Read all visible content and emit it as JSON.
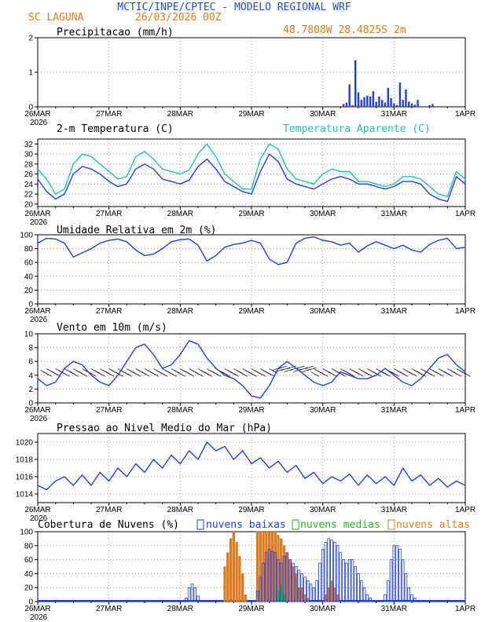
{
  "header": {
    "title": "MCTIC/INPE/CPTEC - MODELO REGIONAL WRF",
    "location": "SC LAGUNA",
    "date": "26/03/2026 00Z",
    "coords": "48.7808W 28.4825S 2m"
  },
  "colors": {
    "title": "#1f4bd9",
    "orange": "#e07b1a",
    "blue": "#1f3ee6",
    "cyan": "#1cc4b4",
    "green": "#22b522",
    "grid": "#9a9a9a"
  },
  "x_axis": {
    "labels": [
      "26MAR",
      "27MAR",
      "28MAR",
      "29MAR",
      "30MAR",
      "31MAR",
      "1APR"
    ],
    "year": "2026",
    "hours_total": 144
  },
  "chart_data": [
    {
      "type": "bar",
      "id": "precip",
      "title": "Precipitacao (mm/h)",
      "ylim": [
        0,
        2
      ],
      "yticks": [
        0,
        1,
        2
      ],
      "x_hours": [
        103,
        104,
        105,
        106,
        107,
        108,
        109,
        110,
        111,
        112,
        113,
        114,
        115,
        116,
        117,
        118,
        119,
        120,
        121,
        122,
        123,
        124,
        125,
        126,
        127,
        128,
        132,
        133
      ],
      "values": [
        0.08,
        0.12,
        0.65,
        0.05,
        1.35,
        0.42,
        0.2,
        0.28,
        0.32,
        0.3,
        0.45,
        0.15,
        0.3,
        0.2,
        0.12,
        0.55,
        0.25,
        0.1,
        0.05,
        0.7,
        0.2,
        0.5,
        0.15,
        0.1,
        0.06,
        0.2,
        0.05,
        0.08
      ]
    },
    {
      "type": "line",
      "id": "temp",
      "title": "2-m Temperatura (C)",
      "legend_extra": "Temperatura Aparente (C)",
      "ylim": [
        19.5,
        33
      ],
      "yticks": [
        20,
        22,
        24,
        26,
        28,
        30,
        32
      ],
      "x": [
        0,
        3,
        6,
        9,
        12,
        15,
        18,
        21,
        24,
        27,
        30,
        33,
        36,
        39,
        42,
        45,
        48,
        51,
        54,
        57,
        60,
        63,
        66,
        69,
        72,
        75,
        78,
        81,
        84,
        87,
        90,
        93,
        96,
        99,
        102,
        105,
        108,
        111,
        114,
        117,
        120,
        123,
        126,
        129,
        132,
        135,
        138,
        141,
        144
      ],
      "series": [
        {
          "name": "Temperatura",
          "color": "#1f3ee6",
          "values": [
            25,
            22.5,
            21,
            22,
            26,
            27.5,
            27,
            26,
            24.5,
            23.5,
            24,
            27,
            28,
            27,
            25,
            24.5,
            24,
            24.8,
            27.5,
            29,
            27,
            24.5,
            23.5,
            22.5,
            22,
            26.5,
            30,
            28.5,
            25,
            24,
            23.5,
            23,
            24,
            25,
            25.5,
            25,
            24,
            24,
            23.5,
            23,
            23.5,
            24.5,
            24.5,
            24,
            22,
            21,
            20.5,
            25.5,
            24
          ]
        },
        {
          "name": "Temperatura Aparente",
          "color": "#1cc4b4",
          "values": [
            27,
            25,
            22,
            23,
            28,
            30,
            29.5,
            28,
            26.5,
            25,
            25.5,
            29.5,
            30.5,
            29,
            27,
            26.5,
            26,
            26.8,
            30,
            32,
            29.5,
            26,
            24.5,
            23,
            23,
            29,
            32,
            31,
            27,
            25,
            24.5,
            24,
            26,
            27,
            26.5,
            26.5,
            24.5,
            24.5,
            24,
            23.5,
            24,
            25.5,
            25.5,
            25,
            23.5,
            22,
            21.5,
            26.5,
            25
          ]
        }
      ]
    },
    {
      "type": "line",
      "id": "rh",
      "title": "Umidade Relativa em 2m (%)",
      "ylim": [
        0,
        100
      ],
      "yticks": [
        0,
        20,
        40,
        60,
        80,
        100
      ],
      "x": [
        0,
        3,
        6,
        9,
        12,
        15,
        18,
        21,
        24,
        27,
        30,
        33,
        36,
        39,
        42,
        45,
        48,
        51,
        54,
        57,
        60,
        63,
        66,
        69,
        72,
        75,
        78,
        81,
        84,
        87,
        90,
        93,
        96,
        99,
        102,
        105,
        108,
        111,
        114,
        117,
        120,
        123,
        126,
        129,
        132,
        135,
        138,
        141,
        144
      ],
      "values": [
        88,
        95,
        94,
        88,
        68,
        74,
        80,
        88,
        92,
        94,
        90,
        78,
        70,
        72,
        80,
        90,
        93,
        94,
        85,
        62,
        70,
        82,
        86,
        88,
        92,
        88,
        65,
        57,
        60,
        88,
        95,
        97,
        92,
        90,
        85,
        88,
        75,
        84,
        90,
        85,
        80,
        85,
        78,
        75,
        86,
        92,
        95,
        80,
        82
      ]
    },
    {
      "type": "line",
      "id": "wind",
      "title": "Vento em 10m (m/s)",
      "ylim": [
        0,
        10
      ],
      "yticks": [
        0,
        2,
        4,
        6,
        8,
        10
      ],
      "x": [
        0,
        3,
        6,
        9,
        12,
        15,
        18,
        21,
        24,
        27,
        30,
        33,
        36,
        39,
        42,
        45,
        48,
        51,
        54,
        57,
        60,
        63,
        66,
        69,
        72,
        75,
        78,
        81,
        84,
        87,
        90,
        93,
        96,
        99,
        102,
        105,
        108,
        111,
        114,
        117,
        120,
        123,
        126,
        129,
        132,
        135,
        138,
        141,
        144
      ],
      "values": [
        3.5,
        2.5,
        3,
        5,
        6,
        5.5,
        4,
        3,
        2.5,
        4,
        6,
        8,
        8.5,
        7,
        5,
        5.5,
        7,
        9,
        8.5,
        6.5,
        5,
        4,
        3.5,
        2.5,
        1,
        0.7,
        2.5,
        5,
        6,
        5,
        4,
        3,
        2.5,
        3,
        4.5,
        4,
        3.5,
        3.5,
        4,
        5,
        4,
        3,
        2.5,
        3.5,
        5,
        6.5,
        7,
        5.5,
        4.5
      ]
    },
    {
      "type": "line",
      "id": "pres",
      "title": "Pressao ao Nivel Medio do Mar (hPa)",
      "ylim": [
        1013,
        1021
      ],
      "yticks": [
        1014,
        1016,
        1018,
        1020
      ],
      "x": [
        0,
        3,
        6,
        9,
        12,
        15,
        18,
        21,
        24,
        27,
        30,
        33,
        36,
        39,
        42,
        45,
        48,
        51,
        54,
        57,
        60,
        63,
        66,
        69,
        72,
        75,
        78,
        81,
        84,
        87,
        90,
        93,
        96,
        99,
        102,
        105,
        108,
        111,
        114,
        117,
        120,
        123,
        126,
        129,
        132,
        135,
        138,
        141,
        144
      ],
      "values": [
        1015,
        1014.5,
        1015.5,
        1016,
        1015,
        1016.2,
        1015,
        1016.5,
        1015.5,
        1017,
        1016,
        1017.5,
        1016.5,
        1018,
        1017,
        1018.5,
        1017.5,
        1019,
        1018,
        1020,
        1019,
        1019.5,
        1018,
        1019,
        1017.5,
        1018.2,
        1017,
        1017.8,
        1016.5,
        1017.3,
        1015.8,
        1016.5,
        1015.2,
        1016,
        1015.5,
        1016.3,
        1015,
        1016.2,
        1015.2,
        1016,
        1015,
        1017,
        1015.5,
        1016.2,
        1015,
        1015.8,
        1014.8,
        1015.5,
        1015
      ]
    },
    {
      "type": "bar",
      "id": "clouds",
      "title": "Cobertura de Nuvens (%)",
      "legend": [
        "nuvens baixas",
        "nuvens medias",
        "nuvens altas"
      ],
      "ylim": [
        0,
        100
      ],
      "yticks": [
        0,
        20,
        40,
        60,
        80,
        100
      ],
      "low_hours": [
        36,
        37,
        38,
        39,
        40,
        41,
        42,
        43,
        44,
        45,
        46,
        47,
        48,
        49,
        50,
        51,
        52,
        53,
        54,
        55,
        56,
        57,
        58,
        59,
        60,
        61,
        62,
        63,
        64,
        65,
        66,
        67,
        68,
        69,
        70,
        71,
        72,
        73,
        74,
        75,
        76,
        77,
        78,
        79,
        80,
        81,
        82,
        83,
        84,
        85,
        86,
        87,
        88,
        89,
        90,
        91,
        92,
        93,
        94,
        95,
        96,
        97,
        98,
        99,
        100,
        101,
        102,
        103,
        104,
        105,
        106,
        107,
        108,
        109,
        110,
        111,
        112,
        113,
        114,
        115,
        116,
        117,
        118,
        119,
        120,
        121,
        122,
        123,
        124,
        125,
        126,
        127,
        128,
        129,
        130,
        131,
        132,
        133,
        134,
        135,
        136,
        137,
        138,
        139,
        140,
        141,
        142,
        143
      ],
      "low_values": [
        0,
        0,
        0,
        0,
        0,
        0,
        0,
        0,
        0,
        0,
        0,
        0,
        0,
        0,
        5,
        20,
        25,
        20,
        8,
        0,
        0,
        0,
        0,
        0,
        0,
        0,
        0,
        0,
        0,
        0,
        0,
        0,
        0,
        0,
        0,
        0,
        0,
        0,
        15,
        35,
        55,
        70,
        75,
        72,
        70,
        60,
        55,
        65,
        70,
        60,
        55,
        50,
        45,
        40,
        35,
        30,
        25,
        20,
        30,
        55,
        75,
        85,
        90,
        88,
        85,
        80,
        70,
        60,
        55,
        60,
        60,
        50,
        40,
        30,
        20,
        10,
        5,
        0,
        0,
        0,
        0,
        10,
        30,
        60,
        80,
        80,
        75,
        60,
        40,
        20,
        10,
        5,
        0,
        0,
        0,
        0,
        0,
        0,
        0,
        0,
        0,
        0,
        0,
        0,
        0,
        0,
        0,
        0
      ],
      "mid_hours": [
        81,
        82,
        83
      ],
      "mid_values": [
        15,
        25,
        10
      ],
      "high_hours": [
        62,
        63,
        64,
        65,
        66,
        67,
        68,
        69,
        70,
        71,
        72,
        73,
        74,
        75,
        76,
        77,
        78,
        79,
        80,
        81,
        82,
        83,
        84,
        85,
        86,
        87,
        88,
        89,
        90,
        91,
        92,
        93,
        94,
        95,
        96,
        97,
        98,
        99,
        100,
        101,
        102,
        103,
        104,
        105,
        106,
        107,
        108,
        109,
        110,
        111,
        112,
        113,
        114,
        115,
        116,
        117,
        118,
        119,
        120,
        121,
        122,
        123,
        124
      ],
      "high_values": [
        0,
        50,
        70,
        90,
        100,
        85,
        65,
        40,
        10,
        0,
        0,
        0,
        100,
        100,
        100,
        100,
        100,
        100,
        100,
        95,
        90,
        80,
        70,
        60,
        50,
        40,
        20,
        20,
        10,
        5,
        0,
        0,
        0,
        0,
        0,
        10,
        20,
        30,
        20,
        10,
        0,
        0,
        0,
        0,
        0,
        0,
        0,
        0,
        0,
        0,
        0,
        0,
        0,
        0,
        0,
        0,
        0,
        0,
        0,
        0,
        0,
        0,
        0
      ]
    }
  ]
}
